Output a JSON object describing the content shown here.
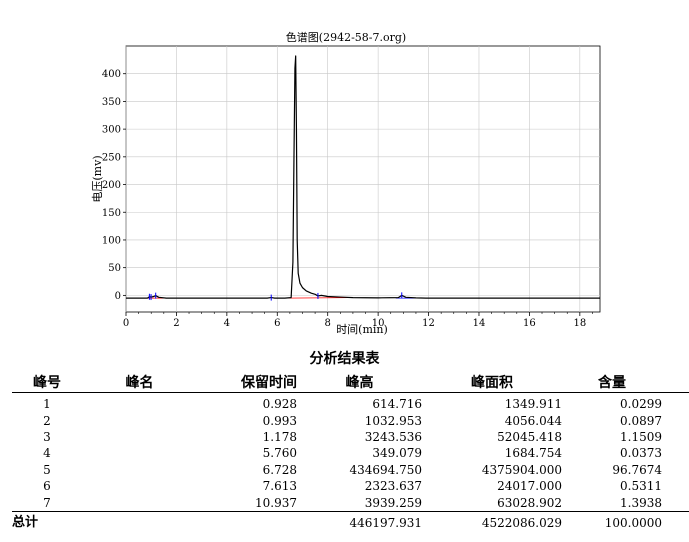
{
  "chart_data": {
    "type": "line",
    "title": "色谱图(2942-58-7.org)",
    "xlabel": "时间(min)",
    "ylabel": "电压(mv)",
    "xlim": [
      0,
      18.8
    ],
    "ylim": [
      -30,
      450
    ],
    "xticks": [
      0,
      2,
      4,
      6,
      8,
      10,
      12,
      14,
      16,
      18
    ],
    "yticks": [
      0,
      50,
      100,
      150,
      200,
      250,
      300,
      350,
      400
    ],
    "grid": true,
    "series": [
      {
        "color": "#000000",
        "x": [
          0,
          0.85,
          0.93,
          1.0,
          1.1,
          1.18,
          1.3,
          1.6,
          5.6,
          5.76,
          5.9,
          6.3,
          6.55,
          6.62,
          6.66,
          6.7,
          6.73,
          6.76,
          6.79,
          6.83,
          6.9,
          7.0,
          7.15,
          7.35,
          7.5,
          7.61,
          7.75,
          8.0,
          8.5,
          9.0,
          10.0,
          10.8,
          10.94,
          11.1,
          11.5,
          11.9,
          18.8
        ],
        "y": [
          -5,
          -5,
          -2.5,
          -3,
          -2,
          -0.5,
          -3.5,
          -5,
          -5,
          -4,
          -5,
          -5,
          -4,
          60,
          240,
          410,
          432,
          300,
          100,
          40,
          22,
          14,
          8,
          4,
          2,
          -1,
          0,
          -2,
          -3,
          -4,
          -4.5,
          -4,
          0,
          -3.5,
          -4.5,
          -5,
          -5
        ]
      }
    ],
    "baselines": [
      {
        "color": "#ff0000",
        "x": [
          0.85,
          1.6
        ],
        "y": [
          -5,
          -5
        ]
      },
      {
        "color": "#ff0000",
        "x": [
          6.3,
          8.9
        ],
        "y": [
          -5,
          -4
        ]
      },
      {
        "color": "#0000ff",
        "x": [
          10.7,
          11.9
        ],
        "y": [
          -5,
          -5
        ]
      }
    ],
    "peak_markers": [
      {
        "x": 0.928,
        "y": -2.5,
        "color": "#0000ff"
      },
      {
        "x": 0.993,
        "y": -3,
        "color": "#0000ff"
      },
      {
        "x": 1.178,
        "y": -0.5,
        "color": "#0000ff"
      },
      {
        "x": 5.76,
        "y": -4,
        "color": "#0000ff"
      },
      {
        "x": 7.613,
        "y": -1,
        "color": "#0000ff"
      },
      {
        "x": 10.937,
        "y": 0,
        "color": "#0000ff"
      }
    ]
  },
  "results": {
    "title": "分析结果表",
    "headers": [
      "峰号",
      "峰名",
      "保留时间",
      "峰高",
      "峰面积",
      "含量"
    ],
    "rows": [
      [
        "1",
        "",
        "0.928",
        "614.716",
        "1349.911",
        "0.0299"
      ],
      [
        "2",
        "",
        "0.993",
        "1032.953",
        "4056.044",
        "0.0897"
      ],
      [
        "3",
        "",
        "1.178",
        "3243.536",
        "52045.418",
        "1.1509"
      ],
      [
        "4",
        "",
        "5.760",
        "349.079",
        "1684.754",
        "0.0373"
      ],
      [
        "5",
        "",
        "6.728",
        "434694.750",
        "4375904.000",
        "96.7674"
      ],
      [
        "6",
        "",
        "7.613",
        "2323.637",
        "24017.000",
        "0.5311"
      ],
      [
        "7",
        "",
        "10.937",
        "3939.259",
        "63028.902",
        "1.3938"
      ]
    ],
    "total": [
      "总计",
      "",
      "",
      "446197.931",
      "4522086.029",
      "100.0000"
    ]
  }
}
